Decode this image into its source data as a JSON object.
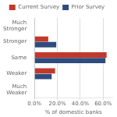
{
  "chart_data": {
    "type": "bar",
    "orientation": "horizontal",
    "categories": [
      "Much\nWeaker",
      "Weaker",
      "Same",
      "Stronger",
      "Much\nStronger"
    ],
    "series": [
      {
        "name": "Current Survey",
        "color": "#C0392B",
        "values": [
          0.0,
          18.0,
          63.0,
          12.0,
          0.0
        ]
      },
      {
        "name": "Prior Survey",
        "color": "#2E4C7E",
        "values": [
          0.0,
          15.0,
          62.0,
          19.0,
          0.0
        ]
      }
    ],
    "xlabel": "% of domestic banks",
    "xlim": [
      0,
      68
    ],
    "xticks": [
      {
        "value": 0,
        "label": "0.0%"
      },
      {
        "value": 20,
        "label": "20.0%"
      },
      {
        "value": 40,
        "label": "40.0%"
      },
      {
        "value": 60,
        "label": "60.0%"
      }
    ],
    "grid": true,
    "legend": "top"
  }
}
